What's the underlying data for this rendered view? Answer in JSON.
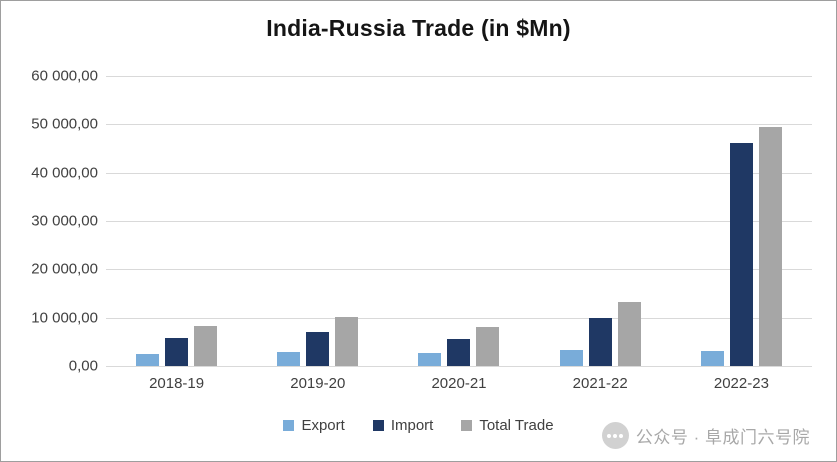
{
  "watermark": {
    "text": "公众号 · 阜成门六号院",
    "icon": "wechat-icon"
  },
  "chart_data": {
    "type": "bar",
    "title": "India-Russia Trade (in $Mn)",
    "categories": [
      "2018-19",
      "2019-20",
      "2020-21",
      "2021-22",
      "2022-23"
    ],
    "series": [
      {
        "name": "Export",
        "color": "#79ACD9",
        "values": [
          2400,
          3000,
          2600,
          3250,
          3200
        ]
      },
      {
        "name": "Import",
        "color": "#1F3864",
        "values": [
          5800,
          7000,
          5500,
          9900,
          46200
        ]
      },
      {
        "name": "Total Trade",
        "color": "#A6A6A6",
        "values": [
          8200,
          10100,
          8100,
          13150,
          49400
        ]
      }
    ],
    "xlabel": "",
    "ylabel": "",
    "ylim": [
      0,
      60000
    ],
    "ytick_step": 10000,
    "ytick_labels": [
      "60 000,00",
      "50 000,00",
      "40 000,00",
      "30 000,00",
      "20 000,00",
      "10 000,00",
      "0,00"
    ],
    "grid": true,
    "legend_position": "bottom",
    "colors": {
      "background": "#FFFFFF",
      "gridline": "#D9D9D9",
      "axis": "#BFBFBF",
      "text": "#404040"
    }
  }
}
